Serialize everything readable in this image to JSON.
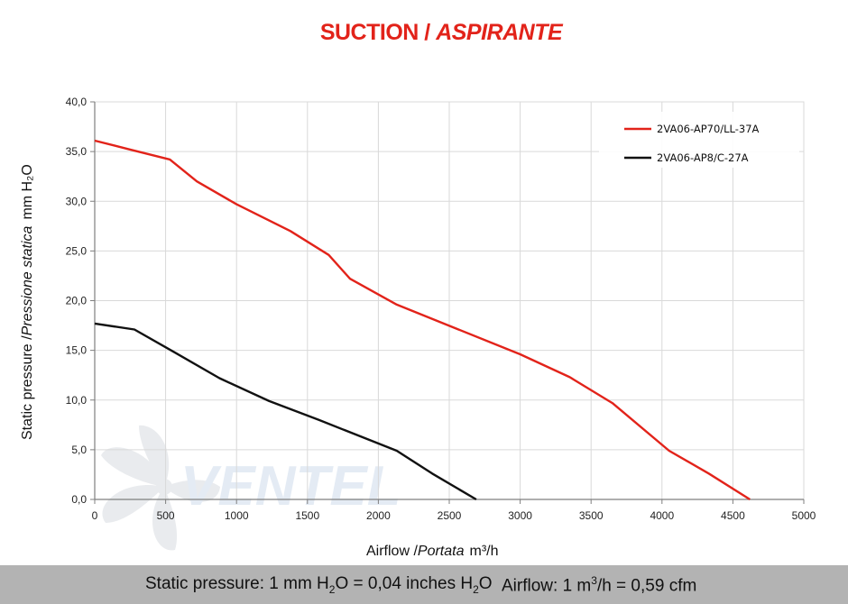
{
  "title": {
    "main": "SUCTION /",
    "italic": "ASPIRANTE"
  },
  "colors": {
    "title": "#e2231a",
    "grid": "#d9d9d9",
    "axis": "#7f7f7f",
    "footer_bg": "#b3b3b3"
  },
  "watermark": {
    "text": "VENTEL",
    "icon": "fan-logo-icon"
  },
  "axes": {
    "x_label": "Airflow /",
    "x_label_italic": "Portata",
    "x_unit": "m³/h",
    "y_label": "Static pressure /",
    "y_label_italic": "Pressione statica",
    "y_unit": "mm  H₂O"
  },
  "chart_data": {
    "type": "line",
    "xlim": [
      0,
      5000
    ],
    "ylim": [
      0,
      40
    ],
    "x_ticks": [
      "0",
      "500",
      "1000",
      "1500",
      "2000",
      "2500",
      "3000",
      "3500",
      "4000",
      "4500",
      "5000"
    ],
    "y_ticks": [
      "0,0",
      "5,0",
      "10,0",
      "15,0",
      "20,0",
      "25,0",
      "30,0",
      "35,0",
      "40,0"
    ],
    "grid": true,
    "legend_position": "top-right",
    "series": [
      {
        "name": "2VA06-AP70/LL-37A",
        "color": "#e2231a",
        "points": [
          [
            0,
            36.1
          ],
          [
            250,
            35.2
          ],
          [
            530,
            34.2
          ],
          [
            720,
            32.0
          ],
          [
            1000,
            29.7
          ],
          [
            1380,
            27.0
          ],
          [
            1650,
            24.6
          ],
          [
            1800,
            22.2
          ],
          [
            2130,
            19.6
          ],
          [
            3000,
            14.6
          ],
          [
            3350,
            12.3
          ],
          [
            3650,
            9.7
          ],
          [
            4050,
            4.9
          ],
          [
            4330,
            2.6
          ],
          [
            4620,
            0.0
          ]
        ]
      },
      {
        "name": "2VA06-AP8/C-27A",
        "color": "#111111",
        "points": [
          [
            0,
            17.7
          ],
          [
            280,
            17.1
          ],
          [
            550,
            14.9
          ],
          [
            880,
            12.2
          ],
          [
            1230,
            9.9
          ],
          [
            1580,
            8.0
          ],
          [
            2130,
            4.9
          ],
          [
            2380,
            2.6
          ],
          [
            2690,
            0.0
          ]
        ]
      }
    ]
  },
  "footer": {
    "pressure_prefix": "Static pressure: 1 mm H",
    "pressure_mid": "O = 0,04 inches H",
    "pressure_suffix": "O",
    "airflow_prefix": "Airflow: 1 m",
    "airflow_suffix": "/h = 0,59 cfm"
  }
}
